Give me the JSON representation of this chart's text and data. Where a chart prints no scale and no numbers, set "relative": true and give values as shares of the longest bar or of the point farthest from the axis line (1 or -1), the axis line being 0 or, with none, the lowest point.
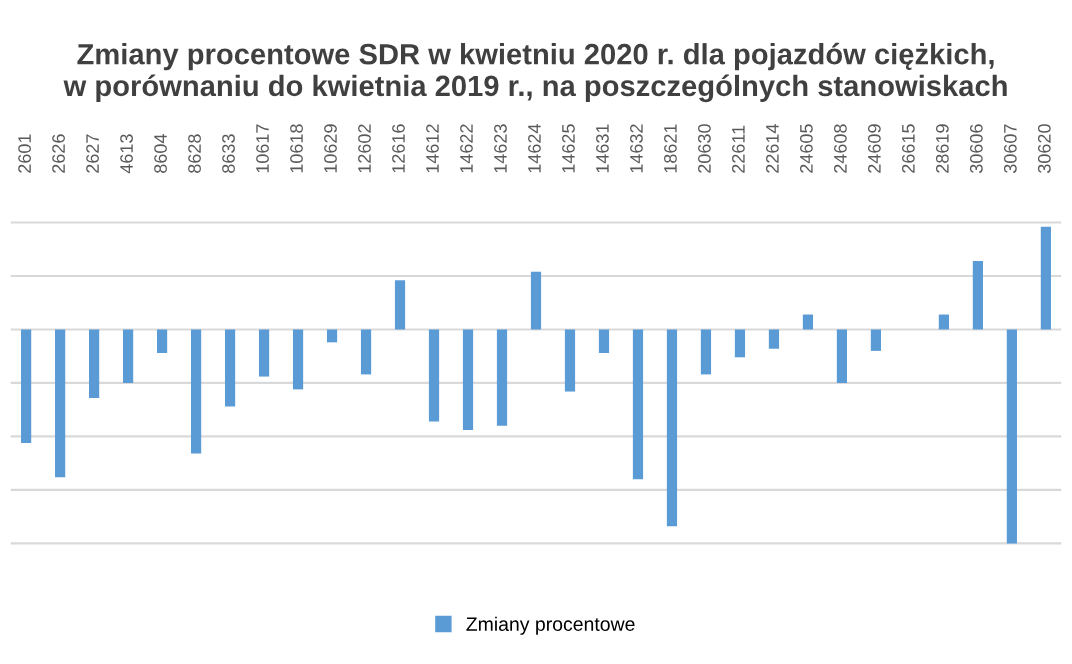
{
  "chart_data": {
    "type": "bar",
    "title": "Zmiany procentowe SDR w kwietniu 2020 r. dla pojazdów ciężkich,\nw porównaniu do kwietnia 2019 r., na poszczególnych stanowiskach",
    "categories": [
      "2601",
      "2626",
      "2627",
      "4613",
      "8604",
      "8628",
      "8633",
      "10617",
      "10618",
      "10629",
      "12602",
      "12616",
      "14612",
      "14622",
      "14623",
      "14624",
      "14625",
      "14631",
      "14632",
      "18621",
      "20630",
      "22611",
      "22614",
      "24605",
      "24608",
      "24609",
      "26615",
      "28619",
      "30606",
      "30607",
      "30620"
    ],
    "relative": true,
    "series": [
      {
        "name": "Zmiany procentowe",
        "color": "#5b9bd5",
        "values": [
          -0.53,
          -0.69,
          -0.32,
          -0.25,
          -0.11,
          -0.58,
          -0.36,
          -0.22,
          -0.28,
          -0.06,
          -0.21,
          0.23,
          -0.43,
          -0.47,
          -0.45,
          0.27,
          -0.29,
          -0.11,
          -0.7,
          -0.92,
          -0.21,
          -0.13,
          -0.09,
          0.07,
          -0.25,
          -0.1,
          0,
          0.07,
          0.32,
          -1,
          0.48
        ]
      }
    ],
    "grid": "y",
    "legend": "bottom"
  }
}
